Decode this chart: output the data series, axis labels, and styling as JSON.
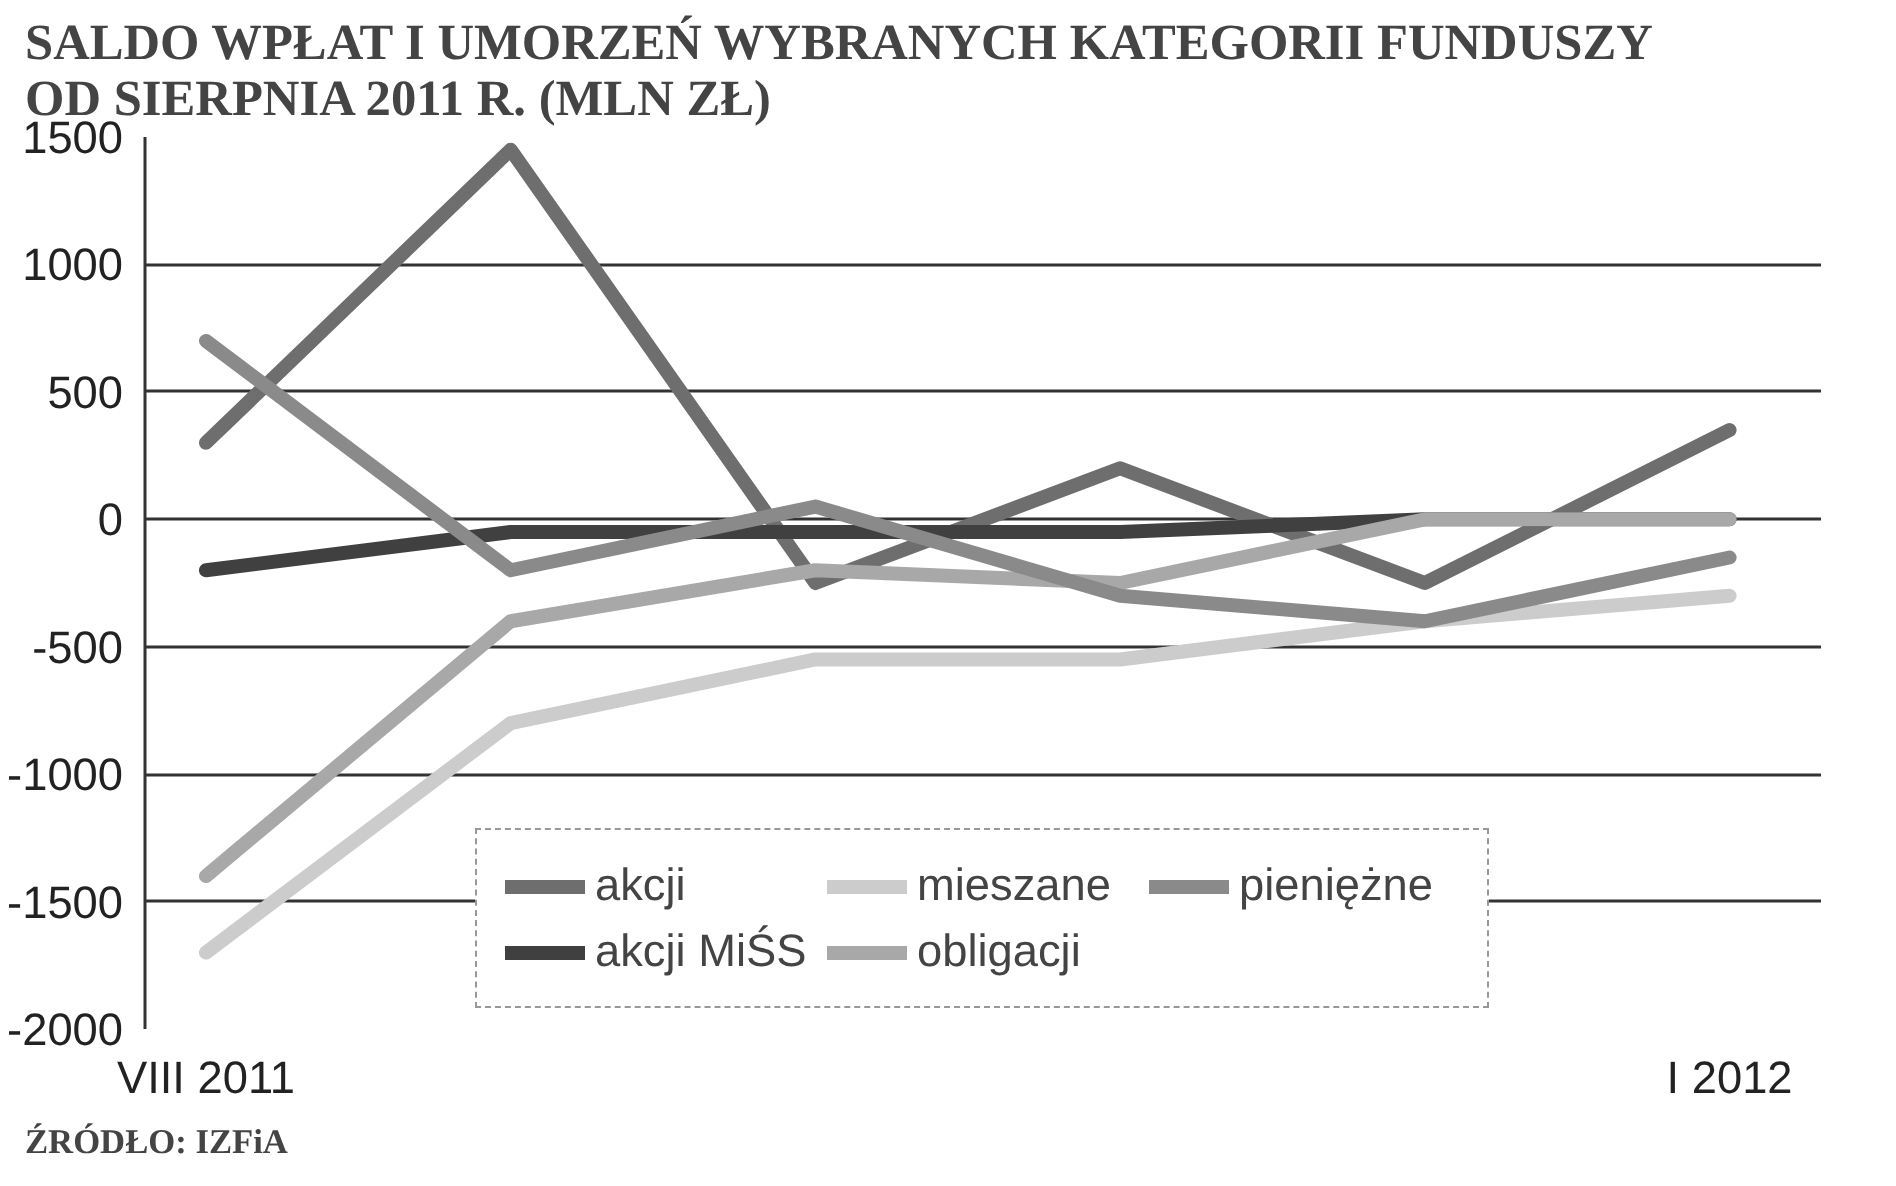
{
  "chart_data": {
    "type": "line",
    "title": "SALDO WPŁAT I UMORZEŃ WYBRANYCH KATEGORII FUNDUSZY\nOD SIERPNIA 2011 R. (MLN ZŁ)",
    "categories": [
      "VIII 2011",
      null,
      null,
      null,
      null,
      "I 2012"
    ],
    "series": [
      {
        "name": "akcji",
        "color": "#6e6e6e",
        "values": [
          300,
          1450,
          -250,
          200,
          -250,
          350
        ]
      },
      {
        "name": "akcji MiŚS",
        "color": "#404040",
        "values": [
          -200,
          -50,
          -50,
          -50,
          0,
          0
        ]
      },
      {
        "name": "mieszane",
        "color": "#cccccc",
        "values": [
          -1700,
          -800,
          -550,
          -550,
          -400,
          -300
        ]
      },
      {
        "name": "obligacji",
        "color": "#a8a8a8",
        "values": [
          -1400,
          -400,
          -200,
          -250,
          0,
          0
        ]
      },
      {
        "name": "pieniężne",
        "color": "#8a8a8a",
        "values": [
          700,
          -200,
          50,
          -300,
          -400,
          -150
        ]
      }
    ],
    "ylim": [
      -2000,
      1500
    ],
    "yticks": [
      -2000,
      -1500,
      -1000,
      -500,
      0,
      500,
      1000,
      1500
    ],
    "grid": "y",
    "legend": "bottom",
    "marker": "none",
    "line_style": "solid",
    "annotations": [
      "ŹRÓDŁO: IZFiA"
    ]
  }
}
